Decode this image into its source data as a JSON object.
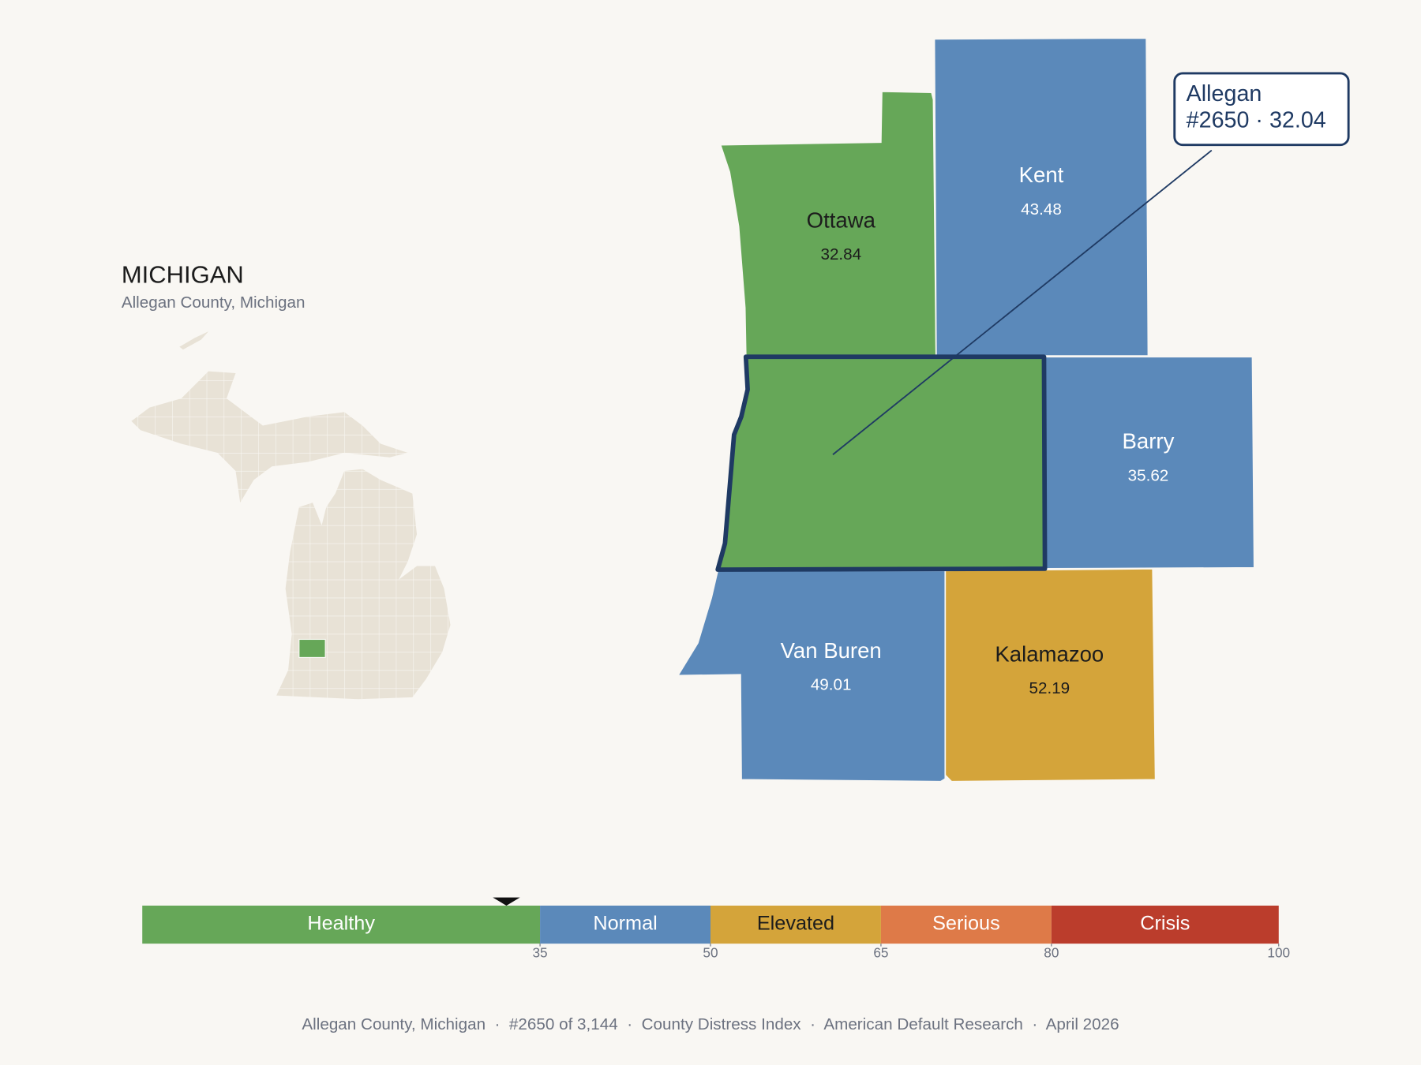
{
  "header": {
    "title": "MICHIGAN",
    "subtitle": "Allegan County, Michigan"
  },
  "selected": {
    "name": "Allegan",
    "detail": "#2650 · 32.04",
    "value": 32.04
  },
  "counties": [
    {
      "name": "Ottawa",
      "value": 32.84
    },
    {
      "name": "Kent",
      "value": 43.48
    },
    {
      "name": "Barry",
      "value": 35.62
    },
    {
      "name": "Van Buren",
      "value": 49.01
    },
    {
      "name": "Kalamazoo",
      "value": 52.19
    }
  ],
  "scale": {
    "min": 0,
    "max": 100,
    "ticks": [
      35,
      50,
      65,
      80,
      100
    ],
    "bands": [
      {
        "label": "Healthy",
        "from": 0,
        "to": 35,
        "color": "#66a758",
        "text_color": "#ffffff",
        "map_text_color": "#1c1c1c"
      },
      {
        "label": "Normal",
        "from": 35,
        "to": 50,
        "color": "#5b89ba",
        "text_color": "#ffffff",
        "map_text_color": "#ffffff"
      },
      {
        "label": "Elevated",
        "from": 50,
        "to": 65,
        "color": "#d4a43a",
        "text_color": "#1c1c1c",
        "map_text_color": "#1c1c1c"
      },
      {
        "label": "Serious",
        "from": 65,
        "to": 80,
        "color": "#de7a48",
        "text_color": "#ffffff",
        "map_text_color": "#ffffff"
      },
      {
        "label": "Crisis",
        "from": 80,
        "to": 100,
        "color": "#bb3d2c",
        "text_color": "#ffffff",
        "map_text_color": "#ffffff"
      }
    ]
  },
  "footer": "Allegan County, Michigan  ·  #2650 of 3,144  ·  County Distress Index  ·  American Default Research  ·  April 2026"
}
